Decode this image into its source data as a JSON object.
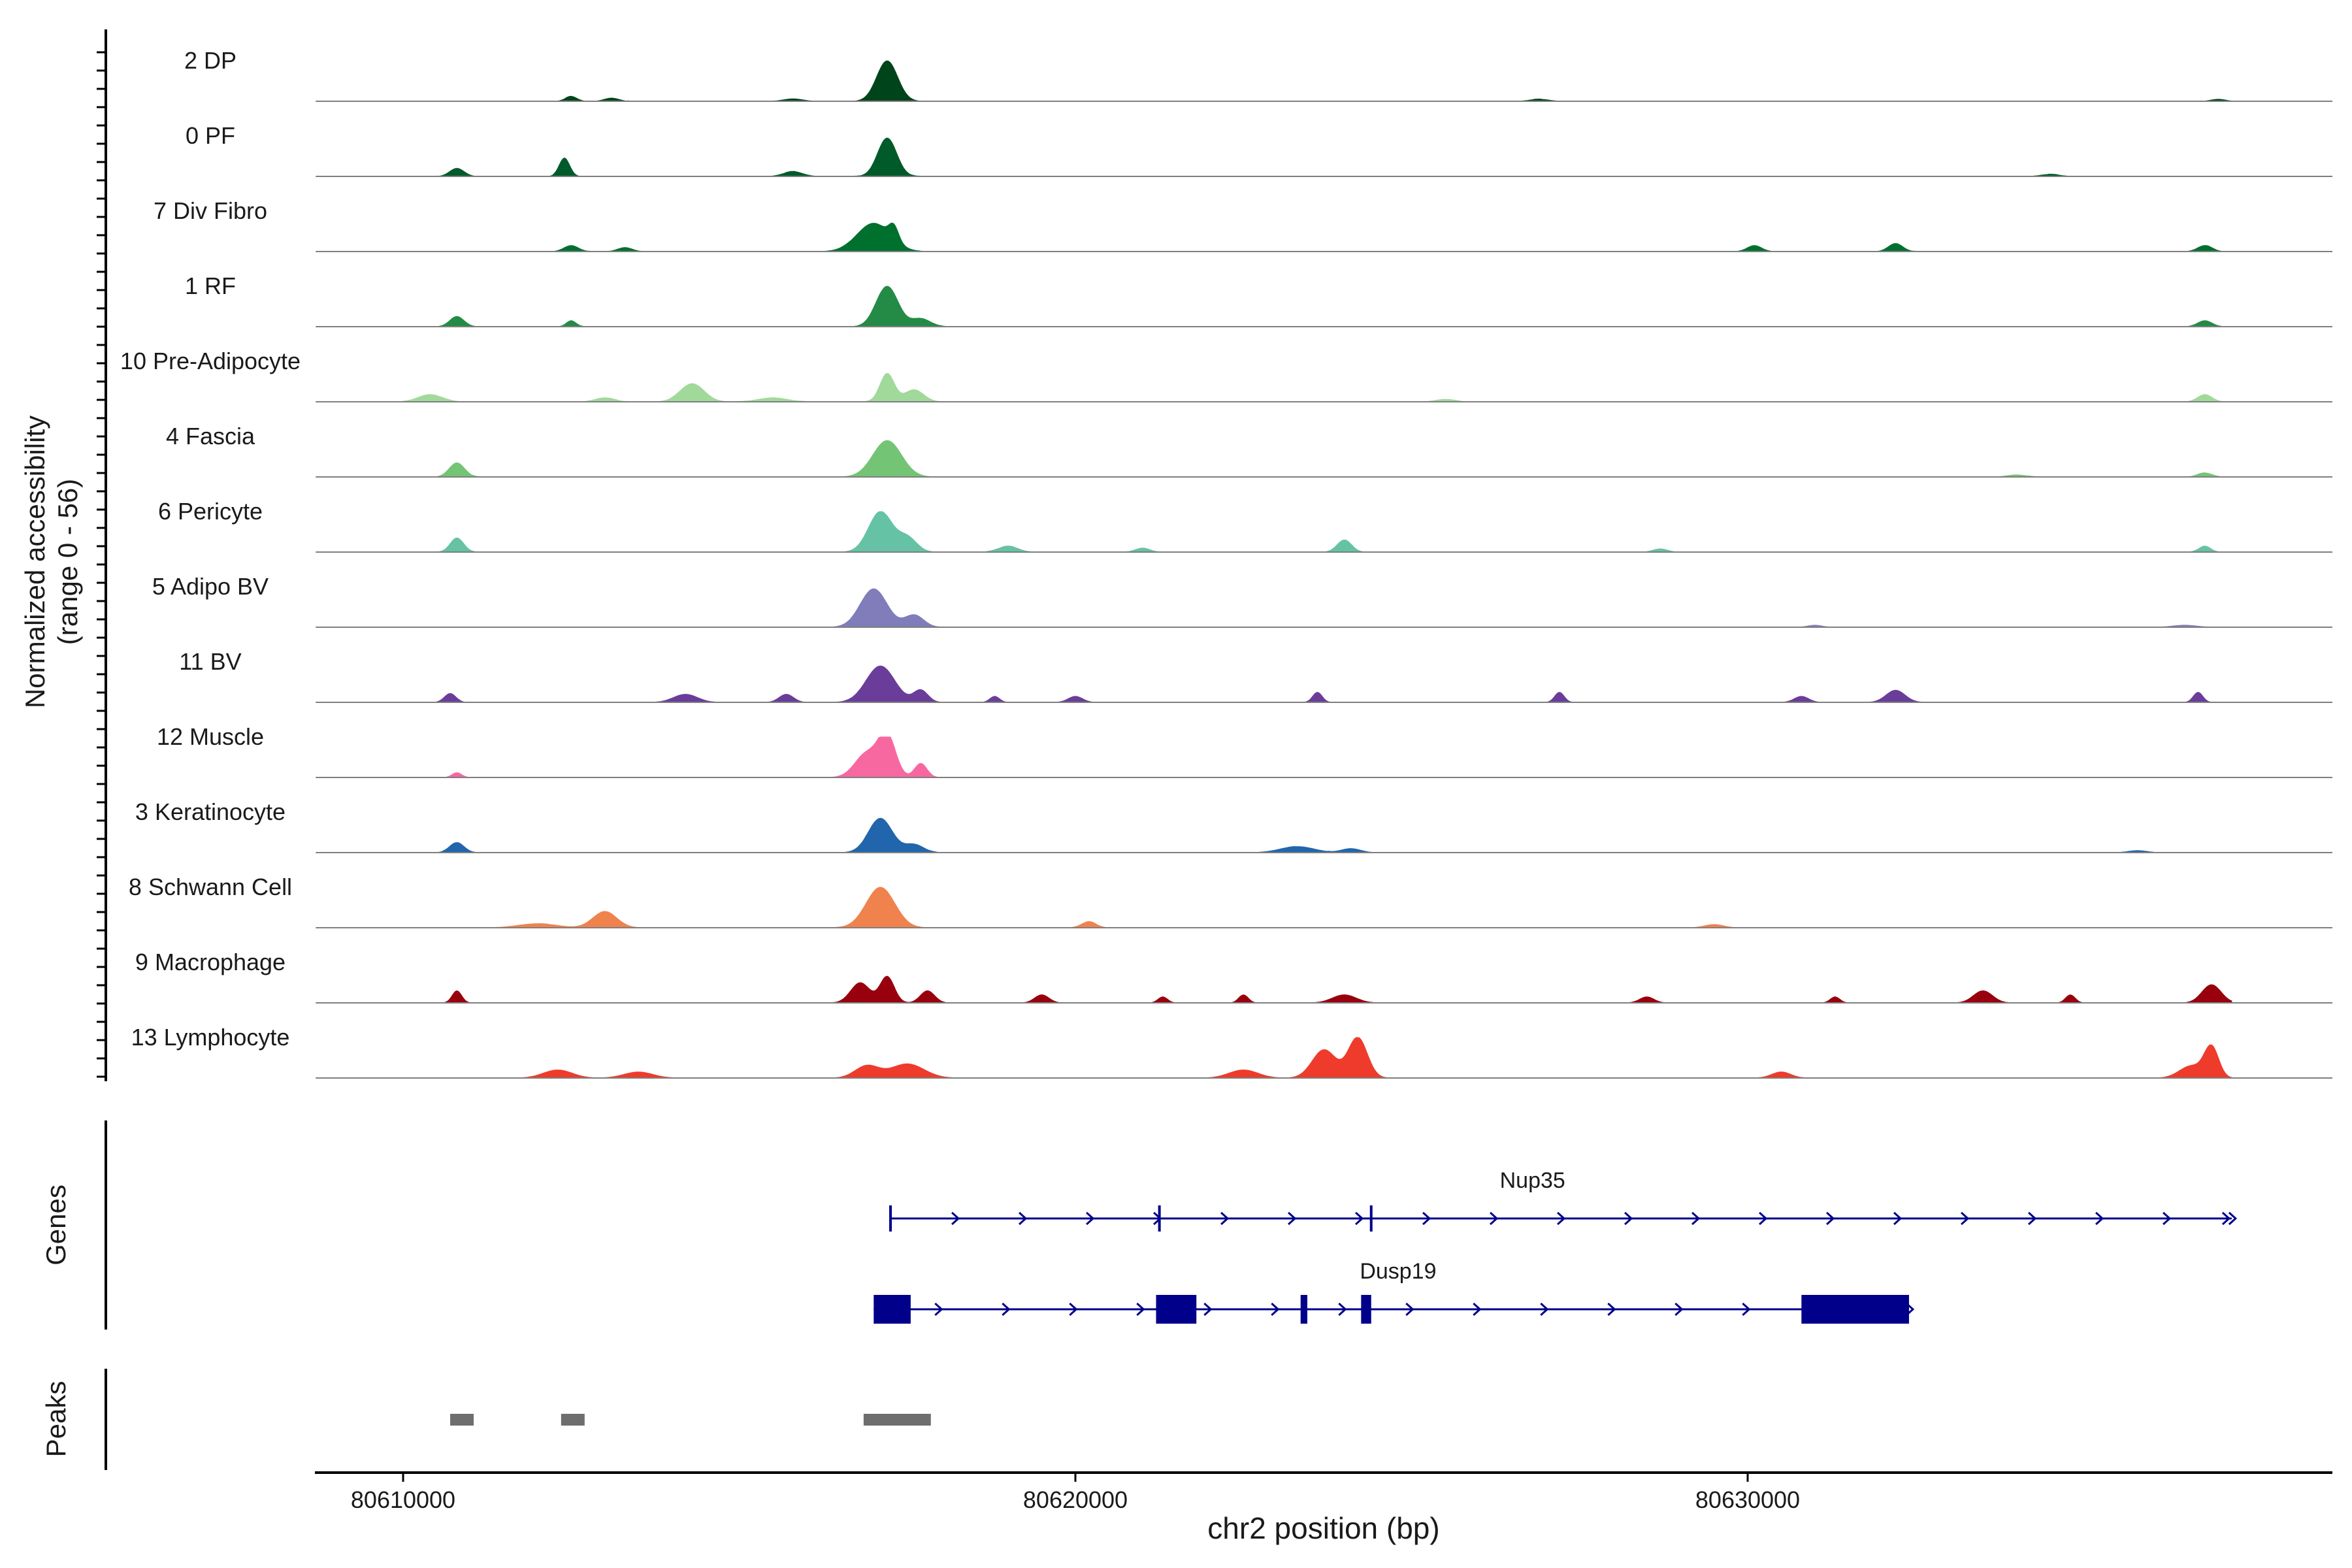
{
  "chart_data": {
    "type": "area",
    "chromosome": "chr2",
    "xlabel": "chr2 position (bp)",
    "ylabel_line1": "Normalized accessibility",
    "ylabel_line2": "(range 0 - 56)",
    "y_range": [
      0,
      56
    ],
    "x_range": [
      80608700,
      80638700
    ],
    "x_ticks": [
      80610000,
      80620000,
      80630000
    ],
    "x_tick_labels": [
      "80610000",
      "80620000",
      "80630000"
    ],
    "series": [
      {
        "name": "2 DP",
        "color": "#00441b",
        "baseline": 0.3,
        "peaks": [
          [
            80612500,
            120,
            0.12
          ],
          [
            80613100,
            150,
            0.08
          ],
          [
            80615800,
            200,
            0.06
          ],
          [
            80617200,
            220,
            1.0
          ],
          [
            80626900,
            200,
            0.05
          ],
          [
            80637000,
            150,
            0.05
          ]
        ]
      },
      {
        "name": "0 PF",
        "color": "#005a2a",
        "baseline": 0.3,
        "peaks": [
          [
            80610800,
            150,
            0.2
          ],
          [
            80612400,
            110,
            0.45
          ],
          [
            80615800,
            200,
            0.12
          ],
          [
            80617200,
            200,
            0.95
          ],
          [
            80634500,
            200,
            0.05
          ]
        ]
      },
      {
        "name": "7 Div Fibro",
        "color": "#00702f",
        "baseline": 0.2,
        "peaks": [
          [
            80612500,
            150,
            0.15
          ],
          [
            80613300,
            150,
            0.1
          ],
          [
            80617000,
            350,
            0.7
          ],
          [
            80617300,
            100,
            0.35
          ],
          [
            80630100,
            150,
            0.15
          ],
          [
            80632200,
            150,
            0.2
          ],
          [
            80636800,
            150,
            0.15
          ]
        ]
      },
      {
        "name": "1 RF",
        "color": "#238b45",
        "baseline": 0.2,
        "peaks": [
          [
            80610800,
            150,
            0.25
          ],
          [
            80612500,
            100,
            0.15
          ],
          [
            80617200,
            230,
            1.0
          ],
          [
            80617700,
            200,
            0.2
          ],
          [
            80636800,
            150,
            0.15
          ]
        ]
      },
      {
        "name": "10 Pre-Adipocyte",
        "color": "#a1d99b",
        "baseline": 0.2,
        "peaks": [
          [
            80610400,
            250,
            0.18
          ],
          [
            80613000,
            200,
            0.1
          ],
          [
            80614300,
            250,
            0.45
          ],
          [
            80615500,
            300,
            0.1
          ],
          [
            80617200,
            150,
            0.7
          ],
          [
            80617600,
            200,
            0.3
          ],
          [
            80625500,
            200,
            0.06
          ],
          [
            80636800,
            150,
            0.18
          ]
        ]
      },
      {
        "name": "4 Fascia",
        "color": "#74c476",
        "baseline": 0.2,
        "peaks": [
          [
            80610800,
            160,
            0.35
          ],
          [
            80617200,
            300,
            0.9
          ],
          [
            80634000,
            200,
            0.05
          ],
          [
            80636800,
            150,
            0.1
          ]
        ]
      },
      {
        "name": "6 Pericyte",
        "color": "#66c2a5",
        "baseline": 0.2,
        "peaks": [
          [
            80610800,
            140,
            0.35
          ],
          [
            80617100,
            250,
            1.0
          ],
          [
            80617500,
            200,
            0.35
          ],
          [
            80619000,
            200,
            0.15
          ],
          [
            80621000,
            150,
            0.1
          ],
          [
            80624000,
            150,
            0.3
          ],
          [
            80628700,
            150,
            0.08
          ],
          [
            80636800,
            120,
            0.15
          ]
        ]
      },
      {
        "name": "5 Adipo BV",
        "color": "#807dba",
        "baseline": 0.2,
        "peaks": [
          [
            80617000,
            280,
            0.95
          ],
          [
            80617600,
            200,
            0.3
          ],
          [
            80631000,
            150,
            0.05
          ],
          [
            80636500,
            250,
            0.05
          ]
        ]
      },
      {
        "name": "11 BV",
        "color": "#6a3d9a",
        "baseline": 0,
        "peaks": [
          [
            80610700,
            120,
            0.22
          ],
          [
            80614200,
            250,
            0.2
          ],
          [
            80615700,
            150,
            0.2
          ],
          [
            80617100,
            300,
            0.9
          ],
          [
            80617700,
            150,
            0.3
          ],
          [
            80618800,
            100,
            0.15
          ],
          [
            80620000,
            150,
            0.15
          ],
          [
            80623600,
            100,
            0.25
          ],
          [
            80627200,
            100,
            0.25
          ],
          [
            80630800,
            150,
            0.15
          ],
          [
            80632200,
            200,
            0.3
          ],
          [
            80636700,
            100,
            0.25
          ]
        ]
      },
      {
        "name": "12 Muscle",
        "color": "#f768a1",
        "baseline": 0,
        "peaks": [
          [
            80610800,
            100,
            0.12
          ],
          [
            80616900,
            250,
            0.6
          ],
          [
            80617200,
            180,
            1.0
          ],
          [
            80617700,
            130,
            0.35
          ]
        ]
      },
      {
        "name": "3 Keratinocyte",
        "color": "#2166ac",
        "baseline": 0.2,
        "peaks": [
          [
            80610800,
            150,
            0.25
          ],
          [
            80617100,
            250,
            0.85
          ],
          [
            80617600,
            200,
            0.2
          ],
          [
            80623300,
            350,
            0.15
          ],
          [
            80624100,
            200,
            0.1
          ],
          [
            80635800,
            200,
            0.05
          ]
        ]
      },
      {
        "name": "8 Schwann Cell",
        "color": "#f0824d",
        "baseline": 0.2,
        "peaks": [
          [
            80612000,
            400,
            0.1
          ],
          [
            80613000,
            250,
            0.4
          ],
          [
            80617100,
            300,
            1.0
          ],
          [
            80620200,
            150,
            0.15
          ],
          [
            80629500,
            200,
            0.08
          ]
        ]
      },
      {
        "name": "9 Macrophage",
        "color": "#99000d",
        "baseline": 0,
        "peaks": [
          [
            80610800,
            100,
            0.3
          ],
          [
            80616800,
            200,
            0.5
          ],
          [
            80617200,
            150,
            0.65
          ],
          [
            80617800,
            150,
            0.3
          ],
          [
            80619500,
            150,
            0.2
          ],
          [
            80621300,
            100,
            0.15
          ],
          [
            80622500,
            100,
            0.2
          ],
          [
            80624000,
            250,
            0.2
          ],
          [
            80628500,
            150,
            0.15
          ],
          [
            80631300,
            100,
            0.15
          ],
          [
            80633500,
            200,
            0.3
          ],
          [
            80634800,
            100,
            0.2
          ],
          [
            80636900,
            200,
            0.45
          ]
        ]
      },
      {
        "name": "13 Lymphocyte",
        "color": "#ef3b2c",
        "baseline": 0,
        "peaks": [
          [
            80612300,
            300,
            0.2
          ],
          [
            80613500,
            300,
            0.15
          ],
          [
            80616900,
            250,
            0.3
          ],
          [
            80617500,
            350,
            0.35
          ],
          [
            80623700,
            250,
            0.7
          ],
          [
            80624200,
            200,
            1.0
          ],
          [
            80622500,
            300,
            0.2
          ],
          [
            80630500,
            200,
            0.15
          ],
          [
            80636600,
            250,
            0.3
          ],
          [
            80636900,
            150,
            0.75
          ]
        ]
      }
    ],
    "genes": [
      {
        "name": "Nup35",
        "start": 80617250,
        "end": 80637200,
        "strand": "+",
        "exons": []
      },
      {
        "name": "Dusp19",
        "start": 80617000,
        "end": 80632400,
        "strand": "+",
        "exons": [
          [
            80617000,
            80617550
          ],
          [
            80621200,
            80621800
          ],
          [
            80623350,
            80623450
          ],
          [
            80624250,
            80624400
          ],
          [
            80630800,
            80632400
          ]
        ]
      }
    ],
    "gene_track_label": "Genes",
    "peaks_track_label": "Peaks",
    "peaks": [
      [
        80610700,
        80611050
      ],
      [
        80612350,
        80612700
      ],
      [
        80616850,
        80617850
      ]
    ]
  }
}
